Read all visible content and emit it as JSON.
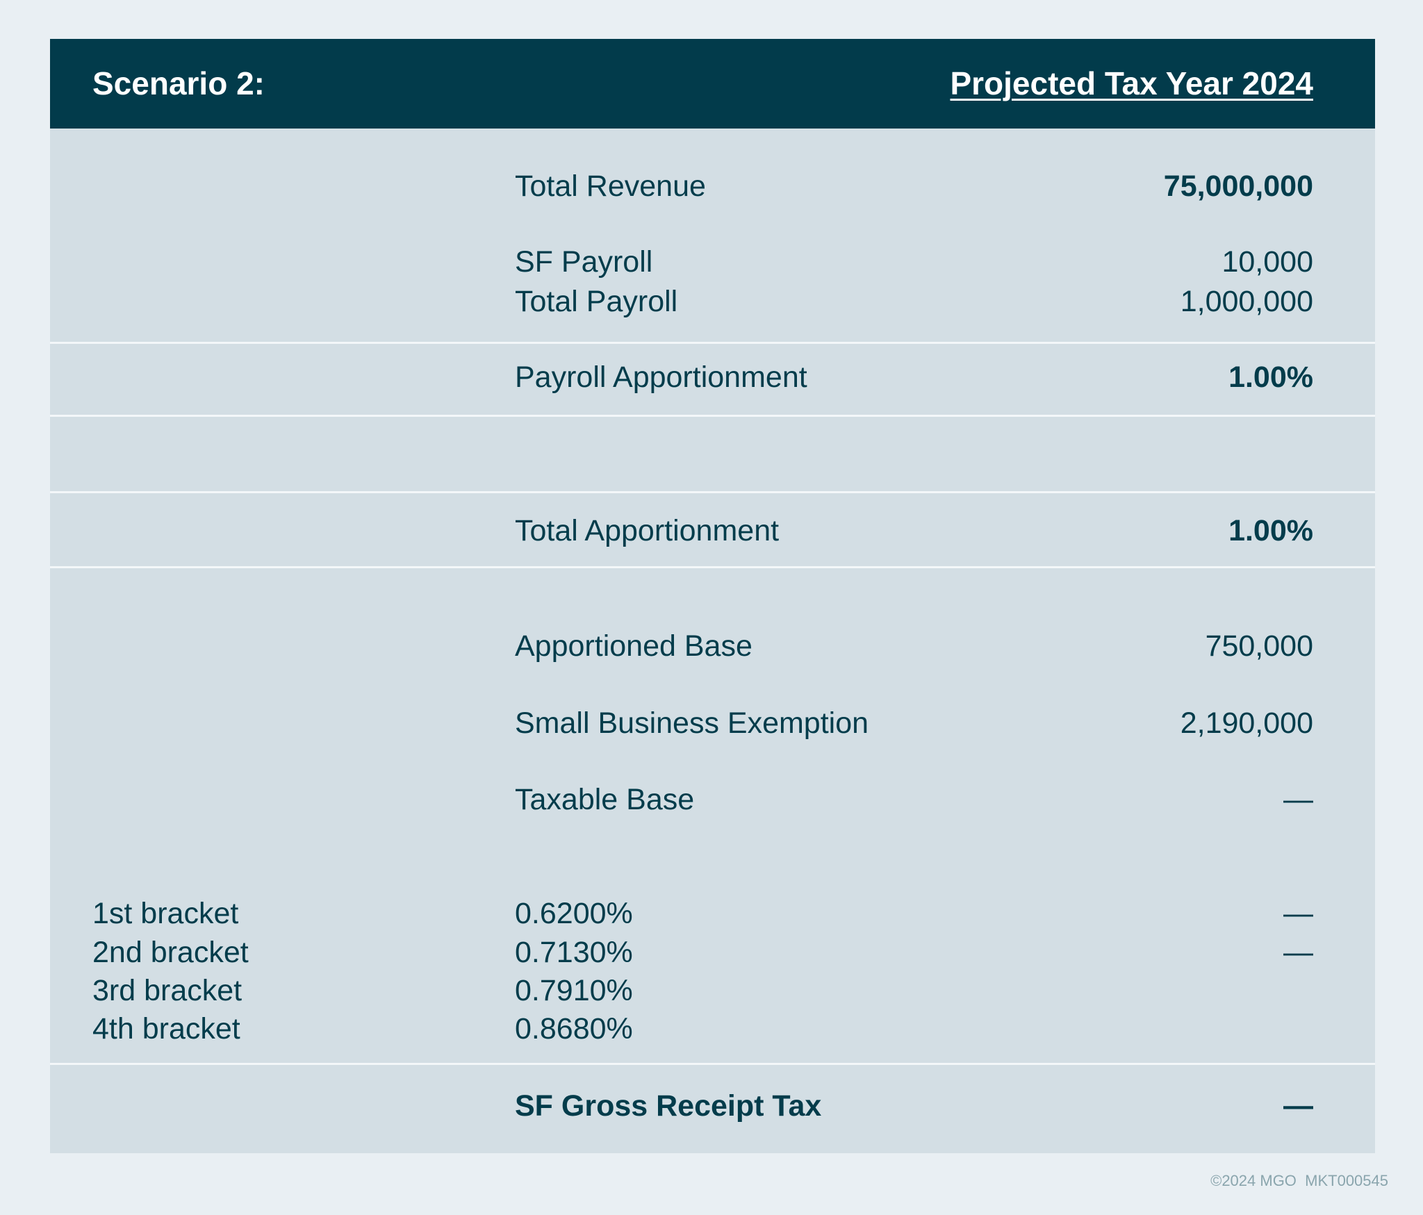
{
  "header": {
    "title": "Scenario 2:",
    "year": "Projected Tax Year 2024"
  },
  "rows": {
    "total_revenue": {
      "label": "Total Revenue",
      "value": "75,000,000"
    },
    "sf_payroll": {
      "label": "SF Payroll",
      "value": "10,000"
    },
    "total_payroll": {
      "label": "Total Payroll",
      "value": "1,000,000"
    },
    "payroll_apportionment": {
      "label": "Payroll Apportionment",
      "value": "1.00%"
    },
    "total_apportionment": {
      "label": "Total Apportionment",
      "value": "1.00%"
    },
    "apportioned_base": {
      "label": "Apportioned Base",
      "value": "750,000"
    },
    "small_business_exemption": {
      "label": "Small Business Exemption",
      "value": "2,190,000"
    },
    "taxable_base": {
      "label": "Taxable Base",
      "value": "—"
    }
  },
  "brackets": [
    {
      "name": "1st bracket",
      "rate": "0.6200%",
      "value": "—"
    },
    {
      "name": "2nd bracket",
      "rate": "0.7130%",
      "value": "—"
    },
    {
      "name": "3rd bracket",
      "rate": "0.7910%",
      "value": ""
    },
    {
      "name": "4th bracket",
      "rate": "0.8680%",
      "value": ""
    }
  ],
  "total": {
    "label": "SF Gross Receipt Tax",
    "value": "—"
  },
  "footer": "©2024 MGO  MKT000545",
  "colors": {
    "header_bg": "#023b4b",
    "table_bg": "#d3dee4",
    "page_bg": "#e9eff3",
    "text": "#033c4b"
  }
}
